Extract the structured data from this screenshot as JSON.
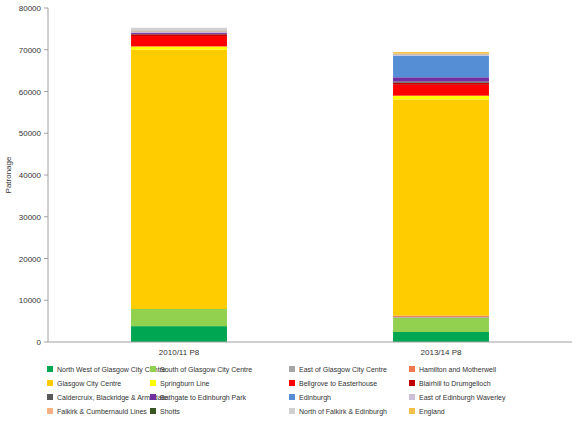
{
  "chart_data": {
    "type": "bar",
    "stacked": true,
    "grid": false,
    "legend": "bottom",
    "y_label": "Patronage",
    "categories": [
      "2010/11 P8",
      "2013/14 P8"
    ],
    "ylim": [
      0,
      80000
    ],
    "yticks": [
      0,
      10000,
      20000,
      30000,
      40000,
      50000,
      60000,
      70000,
      80000
    ],
    "series": [
      {
        "name": "North West of Glasgow City Centre",
        "color": "#00a651",
        "values": [
          3800,
          2400
        ]
      },
      {
        "name": "South of Glasgow City Centre",
        "color": "#92d050",
        "values": [
          4100,
          3400
        ]
      },
      {
        "name": "East of Glasgow City Centre",
        "color": "#a6a6a6",
        "values": [
          0,
          200
        ]
      },
      {
        "name": "Hamilton and Motherwell",
        "color": "#f07850",
        "values": [
          0,
          300
        ]
      },
      {
        "name": "Glasgow City Centre",
        "color": "#ffcc00",
        "values": [
          62100,
          51800
        ]
      },
      {
        "name": "Springburn Line",
        "color": "#ffff00",
        "values": [
          800,
          900
        ]
      },
      {
        "name": "Bellgrove to Easterhouse",
        "color": "#ff0000",
        "values": [
          2500,
          2600
        ]
      },
      {
        "name": "Blairhill to Drumgelloch",
        "color": "#c00000",
        "values": [
          400,
          500
        ]
      },
      {
        "name": "Caldercruix, Blackridge & Armadale",
        "color": "#595959",
        "values": [
          100,
          300
        ]
      },
      {
        "name": "Bathgate to Edinburgh Park",
        "color": "#7030a0",
        "values": [
          300,
          1000
        ]
      },
      {
        "name": "Edinburgh",
        "color": "#558ed5",
        "values": [
          0,
          5200
        ]
      },
      {
        "name": "East of Edinburgh Waverley",
        "color": "#ccc0da",
        "values": [
          200,
          200
        ]
      },
      {
        "name": "Falkirk & Cumbernauld Lines",
        "color": "#f4b183",
        "values": [
          100,
          100
        ]
      },
      {
        "name": "Shotts",
        "color": "#375623",
        "values": [
          50,
          50
        ]
      },
      {
        "name": "North of Falkirk & Edinburgh",
        "color": "#d0d0d0",
        "values": [
          800,
          100
        ]
      },
      {
        "name": "England",
        "color": "#f2c04a",
        "values": [
          0,
          400
        ]
      }
    ]
  }
}
